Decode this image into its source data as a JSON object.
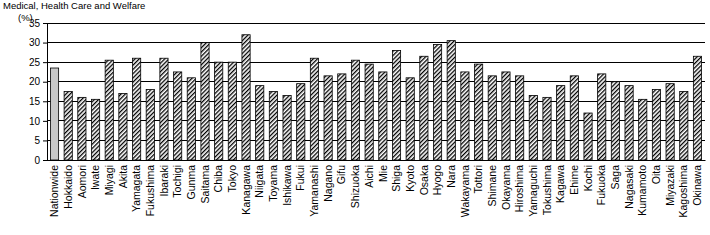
{
  "chart_data": {
    "type": "bar",
    "title": "Medical, Health Care and Welfare",
    "y_label": "(%)",
    "categories": [
      "Nationwide",
      "Hokkaido",
      "Aomori",
      "Iwate",
      "Miyagi",
      "Akita",
      "Yamagata",
      "Fukushima",
      "Ibaraki",
      "Tochigi",
      "Gunma",
      "Saitama",
      "Chiba",
      "Tokyo",
      "Kanagawa",
      "Niigata",
      "Toyama",
      "Ishikawa",
      "Fukui",
      "Yamanashi",
      "Nagano",
      "Gifu",
      "Shizuoka",
      "Aichi",
      "Mie",
      "Shiga",
      "Kyoto",
      "Osaka",
      "Hyogo",
      "Nara",
      "Wakayama",
      "Tottori",
      "Shimane",
      "Okayama",
      "Hiroshima",
      "Yamaguchi",
      "Tokushima",
      "Kagawa",
      "Ehime",
      "Kochi",
      "Fukuoka",
      "Saga",
      "Nagasaki",
      "Kumamoto",
      "Oita",
      "Miyazaki",
      "Kagoshima",
      "Okinawa"
    ],
    "values": [
      23.5,
      17.5,
      16,
      15.5,
      25.5,
      17,
      26,
      18,
      26,
      22.5,
      21,
      30,
      25,
      25,
      32,
      19,
      17.5,
      16.5,
      19.5,
      26,
      21.5,
      22,
      25.5,
      24.5,
      22.5,
      28,
      21,
      26.5,
      29.5,
      30.5,
      22.5,
      24.5,
      21.5,
      22.5,
      21.5,
      16.5,
      16,
      19,
      21.5,
      12,
      22,
      20,
      19,
      15.5,
      18,
      19.5,
      17.5,
      26.5
    ],
    "colors": [
      "#c8c8c8",
      "#000000",
      "#000000",
      "#000000",
      "#000000",
      "#000000",
      "#000000",
      "#000000",
      "#000000",
      "#000000",
      "#000000",
      "#000000",
      "#000000",
      "#000000",
      "#000000",
      "#000000",
      "#000000",
      "#000000",
      "#000000",
      "#000000",
      "#000000",
      "#000000",
      "#000000",
      "#000000",
      "#000000",
      "#000000",
      "#000000",
      "#000000",
      "#000000",
      "#000000",
      "#000000",
      "#000000",
      "#000000",
      "#000000",
      "#000000",
      "#000000",
      "#000000",
      "#000000",
      "#000000",
      "#000000",
      "#000000",
      "#000000",
      "#000000",
      "#000000",
      "#000000",
      "#000000",
      "#000000",
      "#000000"
    ],
    "ylim": [
      0,
      35
    ],
    "yticks": [
      0,
      5,
      10,
      15,
      20,
      25,
      30,
      35
    ],
    "grid": true
  }
}
